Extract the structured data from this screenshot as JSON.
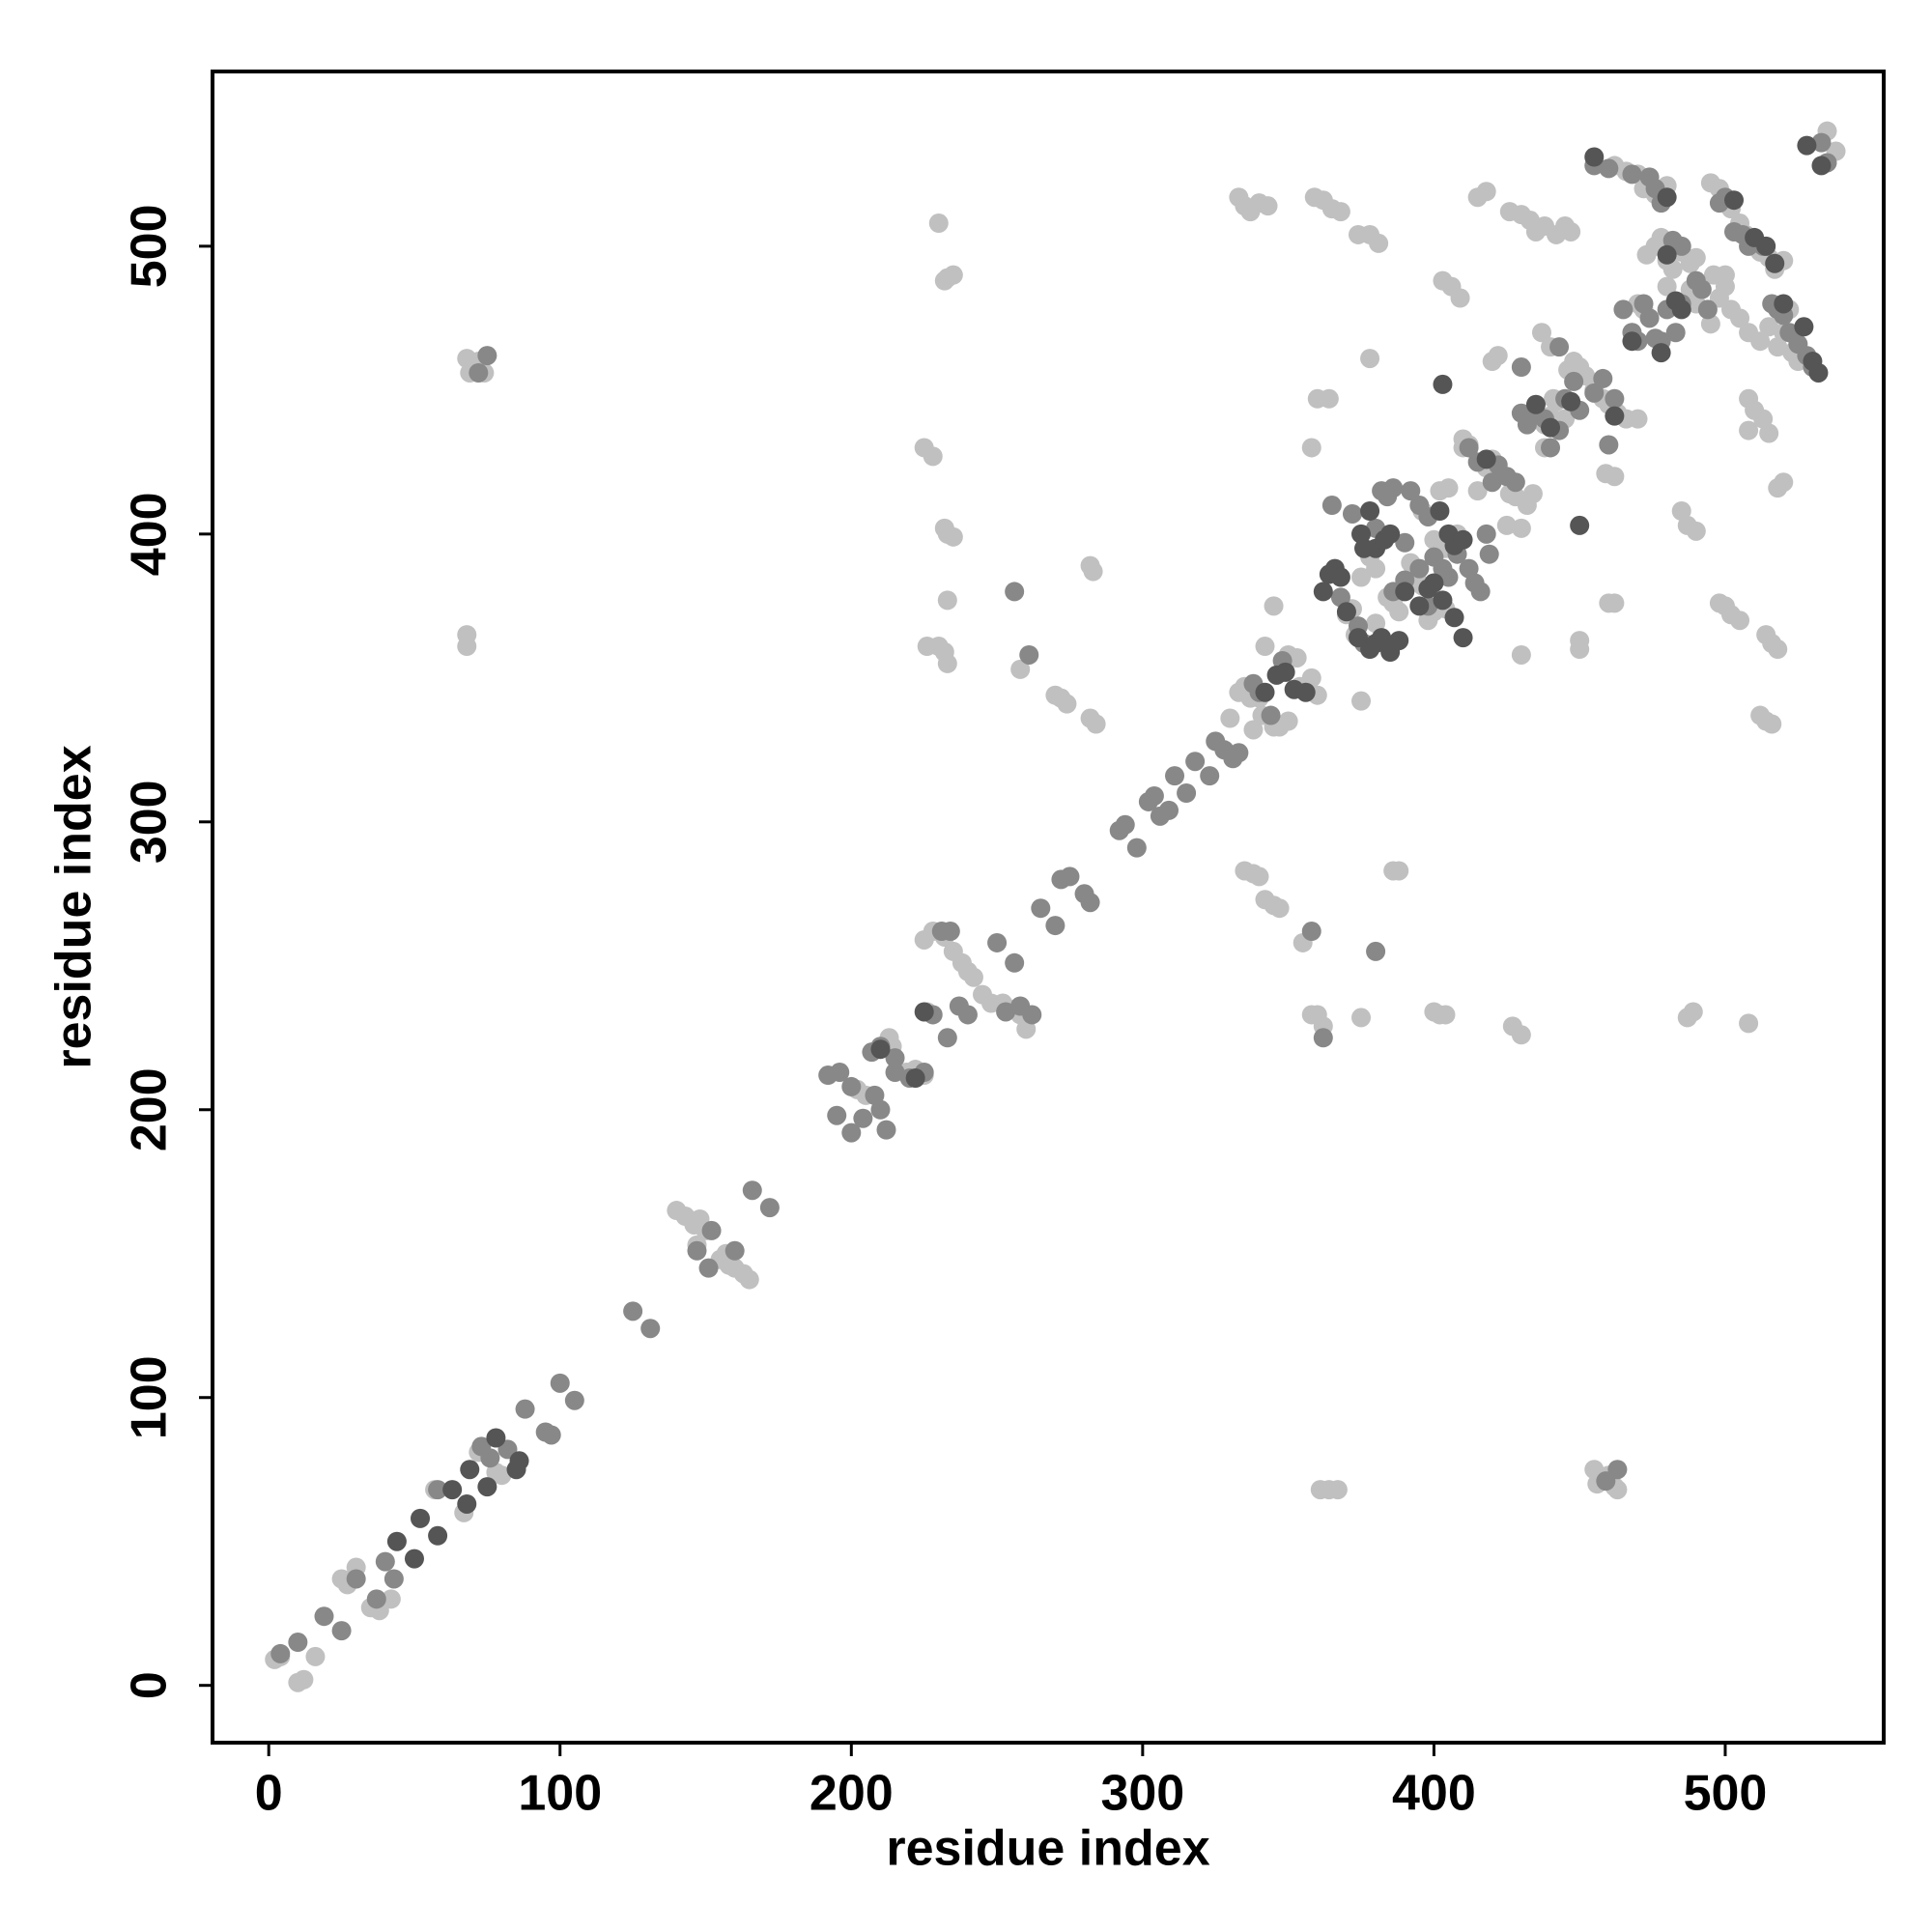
{
  "chart_data": {
    "type": "scatter",
    "x_label": "residue index",
    "y_label": "residue index",
    "xlim": [
      -19.3,
      554.4
    ],
    "ylim": [
      -19.9,
      560.7
    ],
    "xticks": [
      0,
      100,
      200,
      300,
      400,
      500
    ],
    "yticks": [
      0,
      100,
      200,
      300,
      400,
      500
    ],
    "series": [
      {
        "color": "#c0c0c0",
        "x": [
          2,
          4,
          10,
          12,
          16,
          25,
          27,
          30,
          35,
          38,
          42,
          57,
          67,
          72,
          78,
          80,
          140,
          143,
          146,
          148,
          150,
          155,
          158,
          160,
          163,
          165,
          147,
          157,
          202,
          205,
          213,
          214,
          219,
          222,
          225,
          225,
          228,
          232,
          235,
          238,
          240,
          242,
          245,
          248,
          252,
          256,
          260,
          258,
          226,
          330,
          333,
          335,
          337,
          338,
          340,
          341,
          342,
          345,
          347,
          350,
          350,
          353,
          358,
          360,
          354,
          345,
          370,
          373,
          375,
          378,
          380,
          384,
          386,
          388,
          392,
          394,
          396,
          398,
          400,
          402,
          404,
          396,
          400,
          404,
          406,
          408,
          375,
          380,
          372,
          402,
          405,
          410,
          412,
          415,
          418,
          420,
          426,
          428,
          432,
          434,
          438,
          440,
          442,
          445,
          446,
          448,
          450,
          452,
          455,
          458,
          460,
          463,
          466,
          470,
          425,
          430,
          420,
          422,
          437,
          440,
          462,
          466,
          470,
          472,
          476,
          480,
          473,
          476,
          478,
          480,
          482,
          485,
          490,
          488,
          490,
          495,
          498,
          500,
          502,
          505,
          507,
          510,
          512,
          515,
          517,
          520,
          496,
          498,
          500,
          502,
          505,
          508,
          512,
          515,
          518,
          520,
          522,
          523,
          525,
          470,
          472,
          468,
          480,
          500,
          535,
          538,
          488,
          68,
          69,
          70,
          72,
          74,
          68,
          68,
          225,
          228,
          230,
          232,
          233,
          235,
          232,
          233,
          235,
          233,
          226,
          230,
          232,
          233,
          258,
          270,
          272,
          274,
          282,
          283,
          282,
          284,
          333,
          335,
          337,
          340,
          343,
          359,
          362,
          365,
          368,
          374,
          378,
          381,
          378,
          360,
          364,
          358,
          403,
          406,
          409,
          410,
          415,
          418,
          426,
          430,
          433,
          435,
          438,
          442,
          445,
          447,
          438,
          441,
          450,
          450,
          460,
          462,
          459,
          462,
          430,
          485,
          487,
          490,
          495,
          498,
          500,
          502,
          505,
          508,
          510,
          513,
          515,
          514,
          516,
          518,
          512,
          514,
          516,
          518,
          520,
          508,
          335,
          338,
          340,
          342,
          345,
          347,
          355,
          358,
          360,
          362,
          375,
          386,
          388,
          400,
          402,
          404,
          427,
          430,
          487,
          489,
          508,
          361,
          364,
          367,
          455,
          456,
          460,
          462,
          463
        ],
        "y": [
          9,
          10,
          1,
          2,
          10,
          37,
          35,
          41,
          27,
          26,
          30,
          68,
          60,
          81,
          74,
          73,
          165,
          163,
          160,
          162,
          158,
          148,
          146,
          145,
          143,
          141,
          153,
          150,
          207,
          205,
          225,
          222,
          213,
          214,
          212,
          259,
          262,
          260,
          255,
          251,
          248,
          246,
          240,
          237,
          237,
          235,
          228,
          233,
          234,
          336,
          345,
          347,
          343,
          332,
          343,
          337,
          361,
          333,
          333,
          335,
          358,
          357,
          350,
          344,
          347,
          375,
          372,
          365,
          385,
          392,
          388,
          378,
          376,
          373,
          390,
          386,
          382,
          370,
          373,
          376,
          374,
          408,
          398,
          395,
          397,
          400,
          342,
          369,
          374,
          415,
          416,
          433,
          431,
          415,
          423,
          426,
          414,
          413,
          410,
          414,
          430,
          441,
          446,
          440,
          457,
          460,
          458,
          455,
          450,
          447,
          445,
          442,
          440,
          440,
          403,
          402,
          460,
          462,
          470,
          465,
          528,
          526,
          525,
          520,
          518,
          521,
          497,
          500,
          503,
          495,
          492,
          498,
          496,
          485,
          480,
          522,
          520,
          515,
          513,
          508,
          504,
          500,
          498,
          496,
          492,
          495,
          490,
          482,
          486,
          478,
          475,
          470,
          467,
          472,
          465,
          470,
          478,
          463,
          460,
          480,
          478,
          470,
          486,
          490,
          540,
          533,
          494,
          461,
          456,
          458,
          460,
          456,
          365,
          361,
          430,
          427,
          508,
          488,
          489,
          490,
          402,
          400,
          399,
          377,
          361,
          361,
          359,
          355,
          353,
          344,
          343,
          341,
          389,
          387,
          336,
          334,
          517,
          514,
          512,
          515,
          514,
          517,
          516,
          513,
          512,
          504,
          504,
          501,
          461,
          447,
          447,
          430,
          488,
          486,
          482,
          430,
          517,
          519,
          512,
          511,
          509,
          505,
          507,
          504,
          507,
          505,
          438,
          447,
          360,
          363,
          376,
          376,
          421,
          420,
          358,
          408,
          403,
          401,
          473,
          376,
          375,
          372,
          370,
          447,
          443,
          440,
          435,
          365,
          362,
          360,
          337,
          335,
          334,
          416,
          418,
          436,
          283,
          282,
          281,
          273,
          271,
          270,
          258,
          233,
          233,
          229,
          232,
          283,
          283,
          234,
          233,
          233,
          229,
          226,
          232,
          234,
          230,
          68,
          68,
          68,
          75,
          70,
          73,
          69,
          68
        ]
      },
      {
        "color": "#888888",
        "x": [
          4,
          10,
          19,
          25,
          30,
          37,
          40,
          43,
          58,
          73,
          76,
          82,
          88,
          95,
          97,
          100,
          105,
          125,
          131,
          147,
          152,
          160,
          151,
          166,
          172,
          192,
          196,
          200,
          195,
          200,
          204,
          208,
          210,
          212,
          207,
          210,
          215,
          215,
          220,
          225,
          231,
          234,
          228,
          233,
          237,
          240,
          250,
          256,
          253,
          262,
          258,
          265,
          270,
          272,
          275,
          280,
          282,
          292,
          294,
          298,
          302,
          304,
          306,
          309,
          311,
          315,
          318,
          323,
          325,
          328,
          331,
          333,
          338,
          340,
          344,
          348,
          365,
          368,
          372,
          374,
          376,
          380,
          382,
          384,
          386,
          390,
          392,
          395,
          398,
          400,
          403,
          405,
          408,
          412,
          414,
          416,
          418,
          419,
          395,
          398,
          390,
          386,
          412,
          415,
          420,
          422,
          425,
          428,
          430,
          432,
          435,
          438,
          440,
          443,
          445,
          448,
          450,
          455,
          458,
          462,
          430,
          443,
          455,
          460,
          465,
          468,
          470,
          472,
          474,
          476,
          478,
          480,
          483,
          485,
          482,
          485,
          490,
          492,
          494,
          498,
          500,
          503,
          506,
          508,
          510,
          513,
          516,
          518,
          520,
          522,
          525,
          528,
          530,
          468,
          474,
          476,
          478,
          533,
          535,
          75,
          72,
          256,
          261,
          358,
          380,
          362,
          460,
          463,
          459
        ],
        "y": [
          11,
          15,
          24,
          19,
          37,
          30,
          43,
          37,
          68,
          83,
          79,
          82,
          96,
          88,
          87,
          105,
          99,
          130,
          124,
          151,
          158,
          151,
          145,
          172,
          166,
          212,
          213,
          208,
          198,
          192,
          197,
          205,
          200,
          193,
          220,
          222,
          218,
          213,
          211,
          213,
          262,
          262,
          233,
          225,
          236,
          233,
          258,
          251,
          234,
          233,
          236,
          270,
          264,
          280,
          281,
          275,
          272,
          297,
          299,
          291,
          307,
          309,
          302,
          304,
          316,
          310,
          321,
          316,
          328,
          325,
          322,
          324,
          348,
          345,
          337,
          356,
          410,
          378,
          407,
          368,
          362,
          402,
          415,
          413,
          416,
          397,
          415,
          410,
          406,
          392,
          388,
          385,
          393,
          388,
          383,
          380,
          400,
          393,
          388,
          375,
          384,
          380,
          430,
          425,
          418,
          424,
          420,
          418,
          442,
          438,
          442,
          440,
          430,
          436,
          447,
          453,
          443,
          449,
          454,
          447,
          458,
          465,
          528,
          527,
          478,
          470,
          467,
          480,
          475,
          468,
          467,
          478,
          470,
          480,
          502,
          500,
          488,
          485,
          478,
          515,
          517,
          505,
          504,
          500,
          502,
          500,
          480,
          478,
          476,
          470,
          466,
          462,
          458,
          525,
          524,
          520,
          515,
          536,
          529,
          462,
          456,
          380,
          358,
          262,
          255,
          225,
          431,
          75,
          71
        ]
      },
      {
        "color": "#555555",
        "x": [
          44,
          50,
          52,
          58,
          63,
          68,
          69,
          75,
          78,
          86,
          85,
          210,
          222,
          225,
          342,
          346,
          349,
          352,
          356,
          362,
          364,
          366,
          368,
          370,
          374,
          378,
          380,
          382,
          385,
          388,
          380,
          383,
          385,
          390,
          395,
          398,
          400,
          403,
          402,
          405,
          407,
          410,
          410,
          407,
          375,
          376,
          378,
          418,
          435,
          440,
          447,
          462,
          450,
          403,
          455,
          468,
          478,
          480,
          483,
          485,
          503,
          510,
          514,
          517,
          520,
          527,
          530,
          532,
          480,
          528,
          533
        ],
        "y": [
          50,
          44,
          58,
          52,
          68,
          63,
          75,
          69,
          86,
          78,
          75,
          221,
          211,
          234,
          345,
          351,
          352,
          346,
          345,
          380,
          386,
          388,
          385,
          373,
          364,
          360,
          362,
          364,
          359,
          363,
          395,
          398,
          400,
          380,
          375,
          381,
          383,
          377,
          408,
          400,
          396,
          398,
          364,
          371,
          400,
          395,
          408,
          426,
          445,
          437,
          446,
          441,
          403,
          452,
          531,
          467,
          463,
          497,
          481,
          478,
          516,
          503,
          500,
          494,
          480,
          472,
          460,
          456,
          517,
          535,
          528
        ]
      }
    ]
  }
}
